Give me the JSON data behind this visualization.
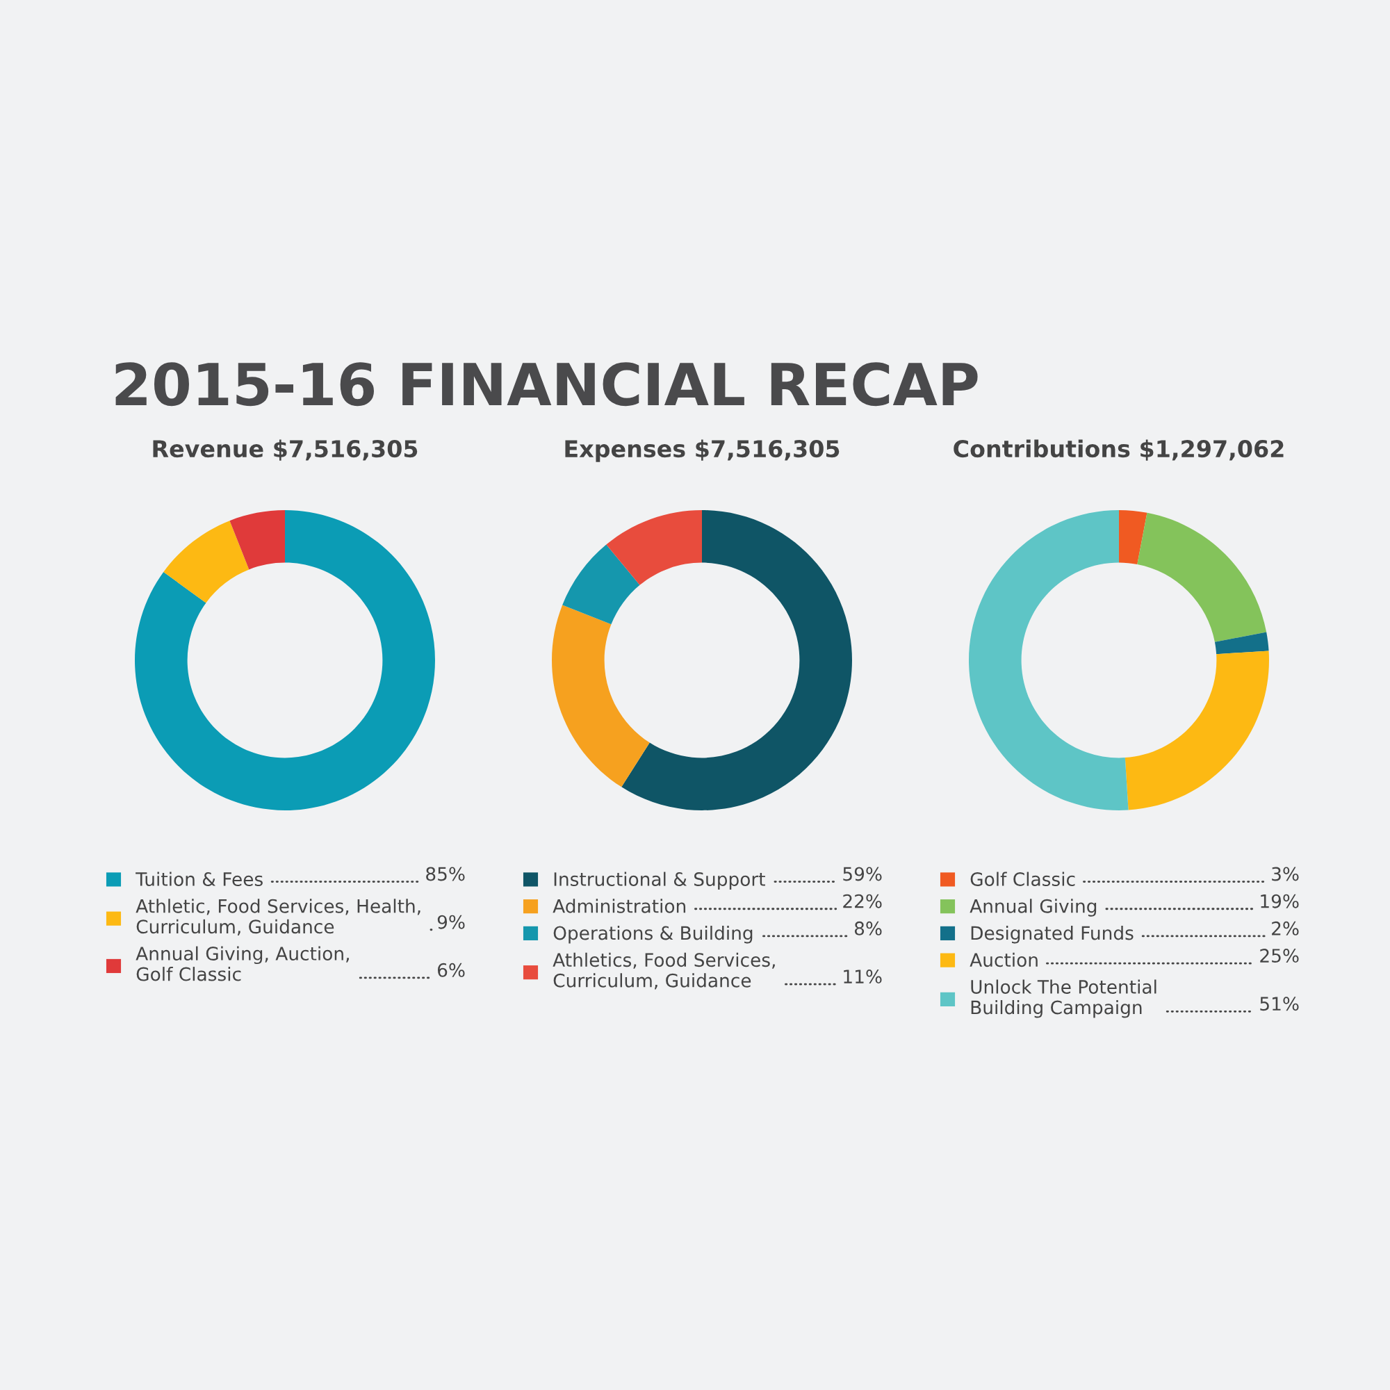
{
  "chart_data": [
    {
      "type": "donut",
      "title": "Revenue $7,516,305",
      "annotations": [
        "2015-16 FINANCIAL RECAP"
      ],
      "legend": "bottom",
      "categories": [
        "Tuition & Fees",
        "Athletic, Food Services, Health,\nCurriculum, Guidance",
        "Annual Giving, Auction,\nGolf Classic"
      ],
      "values": [
        85,
        9,
        6
      ],
      "value_labels": [
        "85%",
        "9%",
        "6%"
      ],
      "colors": [
        "#0b9cb5",
        "#fdb913",
        "#e03a3a"
      ]
    },
    {
      "type": "donut",
      "title": "Expenses $7,516,305",
      "legend": "bottom",
      "categories": [
        "Instructional & Support",
        "Administration",
        "Operations & Building",
        "Athletics, Food Services,\nCurriculum, Guidance"
      ],
      "values": [
        59,
        22,
        8,
        11
      ],
      "value_labels": [
        "59%",
        "22%",
        "8%",
        "11%"
      ],
      "colors": [
        "#0f5566",
        "#f6a11f",
        "#1597ad",
        "#e84c3d"
      ]
    },
    {
      "type": "donut",
      "title": "Contributions $1,297,062",
      "legend": "bottom",
      "categories": [
        "Golf Classic",
        "Annual Giving",
        "Designated Funds",
        "Auction",
        "Unlock The Potential\nBuilding Campaign"
      ],
      "values": [
        3,
        19,
        2,
        25,
        51
      ],
      "value_labels": [
        "3%",
        "19%",
        "2%",
        "25%",
        "51%"
      ],
      "colors": [
        "#f05a22",
        "#84c35b",
        "#13708a",
        "#fdb913",
        "#5ec5c6"
      ]
    }
  ]
}
